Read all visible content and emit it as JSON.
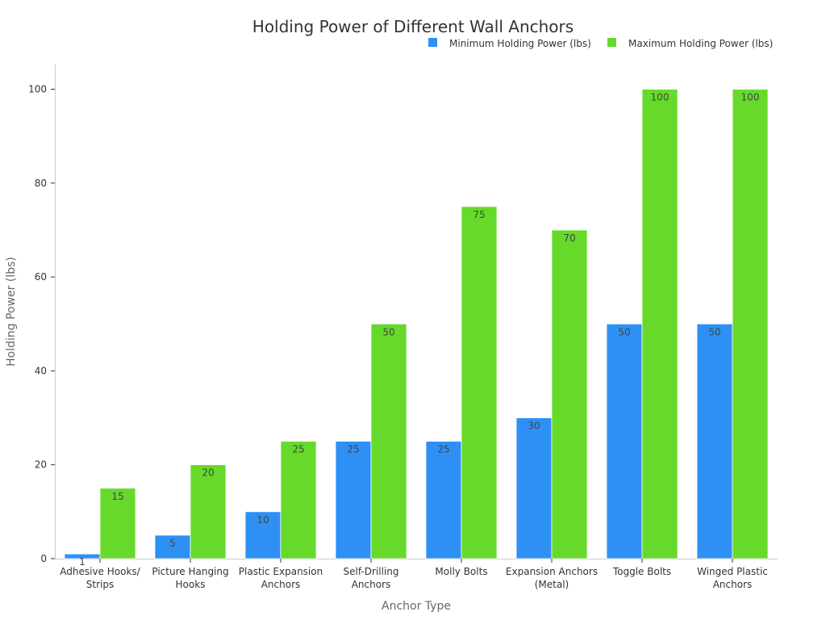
{
  "chart_data": {
    "type": "bar",
    "title": "Holding Power of Different Wall Anchors",
    "xlabel": "Anchor Type",
    "ylabel": "Holding Power (lbs)",
    "ylim": [
      0,
      105
    ],
    "yticks": [
      0,
      20,
      40,
      60,
      80,
      100
    ],
    "legend_position": "top-right",
    "grid": false,
    "categories": [
      [
        "Adhesive Hooks/",
        "Strips"
      ],
      [
        "Picture Hanging",
        "Hooks"
      ],
      [
        "Plastic Expansion",
        "Anchors"
      ],
      [
        "Self-Drilling",
        "Anchors"
      ],
      [
        "Molly Bolts"
      ],
      [
        "Expansion Anchors",
        "(Metal)"
      ],
      [
        "Toggle Bolts"
      ],
      [
        "Winged Plastic",
        "Anchors"
      ]
    ],
    "series": [
      {
        "name": "Minimum Holding Power (lbs)",
        "color": "#2e90f5",
        "values": [
          1,
          5,
          10,
          25,
          25,
          30,
          50,
          50
        ]
      },
      {
        "name": "Maximum Holding Power (lbs)",
        "color": "#66d92b",
        "values": [
          15,
          20,
          25,
          50,
          75,
          70,
          100,
          100
        ]
      }
    ]
  }
}
